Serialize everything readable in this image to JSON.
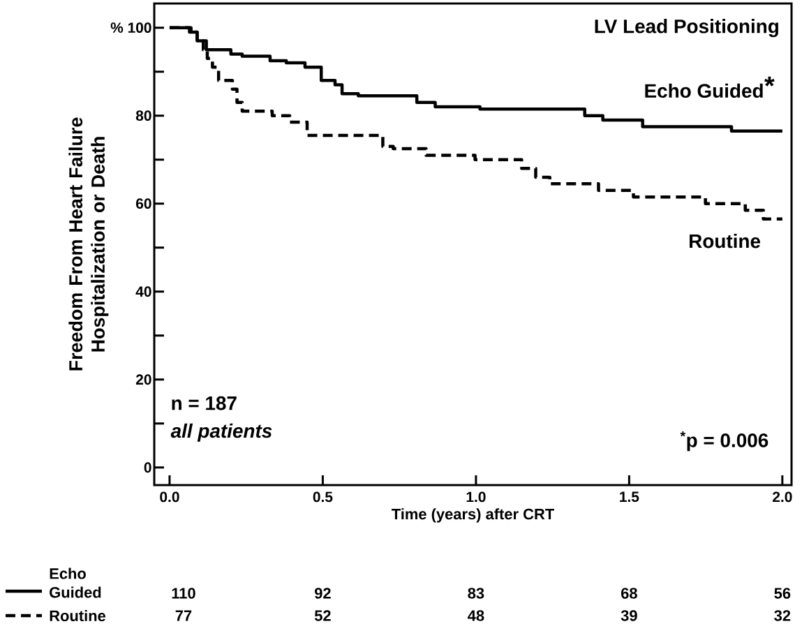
{
  "chart_data": {
    "type": "step",
    "xlabel": "Time (years) after CRT",
    "ylabel": "Freedom From Heart Failure Hospitalization or Death",
    "xlim": [
      -0.05,
      2.03
    ],
    "ylim": [
      -4,
      105.5
    ],
    "xticks": [
      {
        "value": 0,
        "label": "0.0"
      },
      {
        "value": 0.5,
        "label": "0.5"
      },
      {
        "value": 1,
        "label": "1.0"
      },
      {
        "value": 1.5,
        "label": "1.5"
      },
      {
        "value": 2,
        "label": "2.0"
      }
    ],
    "yticks": [
      0,
      {
        "value": 10,
        "label": null
      },
      20,
      {
        "value": 30,
        "label": null
      },
      40,
      {
        "value": 50,
        "label": null
      },
      60,
      {
        "value": 70,
        "label": null
      },
      80,
      {
        "value": 90,
        "label": null
      },
      {
        "value": 100,
        "label": "% 100"
      }
    ],
    "legend": "bottom",
    "marker": "none",
    "series": [
      {
        "name": "Echo Guided",
        "color": "#000000",
        "line_style": "solid",
        "x": [
          0,
          0.065,
          0.09,
          0.12,
          0.2,
          0.237,
          0.328,
          0.381,
          0.442,
          0.495,
          0.54,
          0.563,
          0.616,
          0.807,
          0.867,
          1.013,
          1.355,
          1.414,
          1.544,
          1.834,
          2.0
        ],
        "values": [
          100,
          99,
          97,
          95,
          94,
          93.5,
          92.5,
          92,
          91,
          88,
          87,
          85,
          84.5,
          83,
          82,
          81.5,
          80,
          79,
          77.5,
          76.5,
          76.5
        ]
      },
      {
        "name": "Routine",
        "color": "#000000",
        "line_style": "dashed",
        "x": [
          0,
          0.07,
          0.09,
          0.11,
          0.123,
          0.14,
          0.16,
          0.205,
          0.22,
          0.237,
          0.335,
          0.392,
          0.449,
          0.696,
          0.73,
          0.837,
          0.997,
          1.149,
          1.195,
          1.241,
          1.4,
          1.514,
          1.749,
          1.879,
          1.938,
          2.0
        ],
        "values": [
          100,
          99,
          97,
          95,
          93,
          91,
          88,
          86,
          83,
          81,
          80,
          78.5,
          75.5,
          73,
          72.5,
          71,
          70,
          68,
          66,
          64.5,
          63,
          61.5,
          60,
          58.5,
          56.5,
          56.5
        ]
      }
    ],
    "annotations": [
      "LV Lead Positioning",
      "*",
      "n = 187",
      "all patients",
      "$^{*}$p = 0.006",
      "110",
      "92",
      "83",
      "68",
      "56",
      "77",
      "52",
      "48",
      "39",
      "32"
    ]
  }
}
